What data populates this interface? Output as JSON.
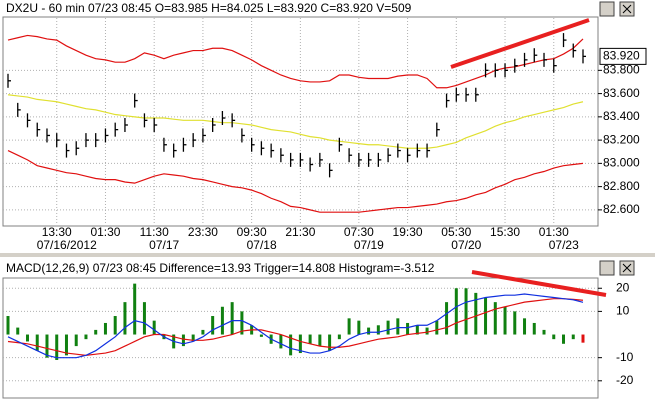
{
  "chart_data": [
    {
      "type": "price",
      "title": "DX2U - 60 min 07/23 08:45 O=83.985 H=84.025 L=83.920 C=83.920 V=509",
      "categories": [
        null,
        null,
        null,
        null,
        null,
        "13:30",
        null,
        null,
        null,
        null,
        "01:30",
        null,
        null,
        null,
        null,
        "11:30",
        null,
        null,
        null,
        null,
        "23:30",
        null,
        null,
        null,
        null,
        "09:30",
        null,
        null,
        null,
        null,
        "21:30",
        null,
        null,
        null,
        null,
        null,
        "07:30",
        null,
        null,
        null,
        null,
        "19:30",
        null,
        null,
        null,
        null,
        "05:30",
        null,
        null,
        null,
        null,
        "15:30",
        null,
        null,
        null,
        null,
        "01:30",
        null,
        null,
        null
      ],
      "dates": [
        null,
        null,
        null,
        null,
        null,
        "07/16/2012",
        null,
        null,
        null,
        null,
        null,
        null,
        null,
        null,
        null,
        "07/17",
        null,
        null,
        null,
        null,
        null,
        null,
        null,
        null,
        null,
        "07/18",
        null,
        null,
        null,
        null,
        null,
        null,
        null,
        null,
        null,
        null,
        "07/19",
        null,
        null,
        null,
        null,
        null,
        null,
        null,
        null,
        null,
        "07/20",
        null,
        null,
        null,
        null,
        null,
        null,
        null,
        null,
        null,
        "07/23",
        null,
        null,
        null
      ],
      "series": [
        {
          "style": "line",
          "color": "#e01010",
          "values": [
            84.06,
            84.08,
            84.1,
            84.09,
            84.07,
            84.06,
            84.01,
            83.97,
            83.93,
            83.9,
            83.89,
            83.87,
            83.87,
            83.9,
            83.95,
            83.93,
            83.9,
            83.93,
            83.95,
            83.97,
            83.97,
            83.99,
            83.99,
            83.97,
            83.93,
            83.89,
            83.84,
            83.8,
            83.76,
            83.73,
            83.71,
            83.7,
            83.7,
            83.71,
            83.76,
            83.76,
            83.74,
            83.73,
            83.73,
            83.73,
            83.75,
            83.76,
            83.76,
            83.73,
            83.65,
            83.65,
            83.67,
            83.7,
            83.73,
            83.76,
            83.8,
            83.82,
            83.83,
            83.85,
            83.87,
            83.89,
            83.9,
            83.94,
            83.99,
            84.07
          ]
        },
        {
          "style": "line",
          "color": "#e0e030",
          "values": [
            83.59,
            83.58,
            83.57,
            83.55,
            83.54,
            83.53,
            83.51,
            83.49,
            83.47,
            83.46,
            83.44,
            83.42,
            83.41,
            83.4,
            83.39,
            83.39,
            83.39,
            83.38,
            83.37,
            83.37,
            83.37,
            83.36,
            83.35,
            83.35,
            83.34,
            83.33,
            83.31,
            83.29,
            83.28,
            83.27,
            83.25,
            83.23,
            83.22,
            83.2,
            83.19,
            83.18,
            83.17,
            83.16,
            83.16,
            83.15,
            83.14,
            83.13,
            83.13,
            83.13,
            83.14,
            83.16,
            83.18,
            83.22,
            83.25,
            83.28,
            83.32,
            83.35,
            83.37,
            83.4,
            83.42,
            83.44,
            83.46,
            83.48,
            83.51,
            83.53
          ]
        },
        {
          "style": "line",
          "color": "#e01010",
          "values": [
            83.11,
            83.07,
            83.03,
            82.98,
            82.96,
            82.94,
            82.92,
            82.91,
            82.89,
            82.87,
            82.86,
            82.86,
            82.84,
            82.83,
            82.86,
            82.89,
            82.91,
            82.9,
            82.89,
            82.87,
            82.86,
            82.84,
            82.82,
            82.8,
            82.79,
            82.77,
            82.74,
            82.7,
            82.67,
            82.63,
            82.62,
            82.6,
            82.58,
            82.58,
            82.58,
            82.58,
            82.58,
            82.59,
            82.6,
            82.61,
            82.62,
            82.62,
            82.63,
            82.64,
            82.65,
            82.67,
            82.68,
            82.7,
            82.73,
            82.75,
            82.79,
            82.82,
            82.86,
            82.88,
            82.91,
            82.93,
            82.96,
            82.98,
            82.99,
            83.0
          ]
        },
        {
          "style": "bars",
          "color": "#000000",
          "values": [
            83.71,
            83.46,
            83.37,
            83.29,
            83.24,
            83.2,
            83.11,
            83.13,
            83.2,
            83.2,
            83.24,
            83.29,
            83.33,
            83.54,
            83.37,
            83.33,
            83.16,
            83.11,
            83.16,
            83.2,
            83.24,
            83.33,
            83.39,
            83.37,
            83.24,
            83.16,
            83.13,
            83.11,
            83.07,
            83.03,
            83.03,
            82.99,
            83.03,
            82.94,
            83.16,
            83.07,
            83.03,
            83.03,
            83.03,
            83.07,
            83.11,
            83.07,
            83.11,
            83.11,
            83.29,
            83.54,
            83.59,
            83.59,
            83.59,
            83.8,
            83.8,
            83.8,
            83.84,
            83.89,
            83.93,
            83.89,
            83.84,
            84.06,
            83.97,
            83.92
          ]
        }
      ],
      "last_price": {
        "value": 83.92,
        "label": "83.920"
      },
      "ylim": [
        82.47,
        84.25
      ],
      "yticks": [
        {
          "value": 83.8,
          "label": "83.800"
        },
        {
          "value": 83.6,
          "label": "83.600"
        },
        {
          "value": 83.4,
          "label": "83.400"
        },
        {
          "value": 83.2,
          "label": "83.200"
        },
        {
          "value": 83.0,
          "label": "83.000"
        },
        {
          "value": 82.8,
          "label": "82.800"
        },
        {
          "value": 82.6,
          "label": "82.600"
        }
      ],
      "grid": true
    },
    {
      "type": "macd",
      "title": "MACD(12,26,9) 07/23 08:45 Difference=13.93 Trigger=14.808 Histogram=-3.512",
      "series": [
        {
          "style": "histogram",
          "color": "#108010",
          "last_color": "#e01010",
          "values": [
            8,
            3,
            -3,
            -7,
            -10,
            -11,
            -9,
            -5,
            -2,
            2,
            5,
            8,
            14,
            22,
            14,
            6,
            -2,
            -6,
            -5,
            -3,
            2,
            8,
            12,
            14,
            10,
            4,
            -1,
            -4,
            -6,
            -9,
            -8,
            -4,
            -5,
            -7,
            -2,
            7,
            6,
            3,
            4,
            6,
            7,
            5,
            4,
            3,
            6,
            14,
            20,
            20,
            18,
            16,
            14,
            12,
            10,
            7,
            5,
            2,
            -2,
            -4,
            -2,
            -3.512
          ]
        },
        {
          "style": "line",
          "color": "#e01010",
          "values": [
            -3,
            -3.5,
            -4,
            -5,
            -6,
            -7,
            -8,
            -8.5,
            -9,
            -8.5,
            -8,
            -7,
            -5,
            -3,
            -1,
            0,
            0,
            -1,
            -2,
            -2.5,
            -2.5,
            -2,
            -1,
            0,
            1.5,
            2,
            2,
            1,
            0,
            -1.5,
            -3,
            -4,
            -5,
            -5.5,
            -5.5,
            -5,
            -4,
            -3,
            -2,
            -1.5,
            -1,
            0,
            0.5,
            1,
            2,
            3,
            5,
            6.5,
            8,
            9.5,
            11,
            12,
            13,
            14,
            14.5,
            15,
            15.5,
            15.5,
            15.2,
            14.808
          ]
        },
        {
          "style": "line",
          "color": "#1030e0",
          "values": [
            -1,
            -3,
            -5,
            -7,
            -9,
            -10,
            -10,
            -10,
            -9,
            -7,
            -4,
            -1,
            3,
            6,
            5,
            2,
            -1,
            -3,
            -4,
            -3,
            -1,
            2,
            4,
            6,
            6,
            4,
            1,
            -2,
            -4,
            -6,
            -7,
            -8,
            -8,
            -7,
            -5,
            -2,
            0,
            1,
            1,
            2,
            3,
            3,
            4,
            4,
            6,
            9,
            12,
            14,
            15,
            16,
            16.5,
            17,
            17,
            17.5,
            17,
            16.5,
            16,
            15.5,
            15,
            13.93
          ]
        }
      ],
      "ylim": [
        -27,
        24
      ],
      "yticks": [
        20,
        10,
        -10,
        -20
      ],
      "grid": true
    }
  ]
}
